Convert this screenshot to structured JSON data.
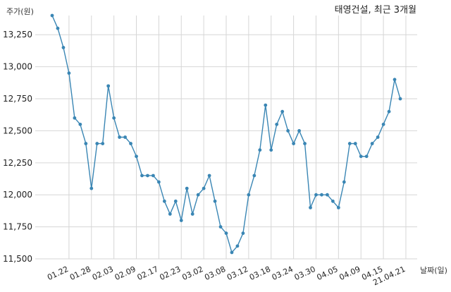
{
  "chart_data": {
    "type": "line",
    "title": "태영건설, 최근 3개월",
    "xlabel": "날짜(일)",
    "ylabel": "주가(원)",
    "ylim": [
      11500,
      13400
    ],
    "yticks": [
      11500,
      11750,
      12000,
      12250,
      12500,
      12750,
      13000,
      13250
    ],
    "ytick_labels": [
      "11,500",
      "11,750",
      "12,000",
      "12,250",
      "12,500",
      "12,750",
      "13,000",
      "13,250"
    ],
    "xtick_labels": [
      "01.22",
      "01.28",
      "02.03",
      "02.09",
      "02.17",
      "02.23",
      "03.02",
      "03.08",
      "03.12",
      "03.18",
      "03.24",
      "03.30",
      "04.05",
      "04.09",
      "04.15",
      "21.04.21"
    ],
    "xtick_positions": [
      3,
      7,
      11,
      15,
      19,
      23,
      27,
      31,
      35,
      39,
      43,
      47,
      51,
      55,
      59,
      63
    ],
    "grid": true,
    "line_color": "#3a86b4",
    "series": [
      {
        "name": "",
        "values": [
          13400,
          13300,
          13150,
          12950,
          12600,
          12550,
          12400,
          12050,
          12400,
          12400,
          12850,
          12600,
          12450,
          12450,
          12400,
          12300,
          12150,
          12150,
          12150,
          12100,
          11950,
          11850,
          11950,
          11800,
          12050,
          11850,
          12000,
          12050,
          12150,
          11950,
          11750,
          11700,
          11550,
          11600,
          11700,
          12000,
          12150,
          12350,
          12700,
          12350,
          12550,
          12650,
          12500,
          12400,
          12500,
          12400,
          11900,
          12000,
          12000,
          12000,
          11950,
          11900,
          12100,
          12400,
          12400,
          12300,
          12300,
          12400,
          12450,
          12550,
          12650,
          12900,
          12750
        ]
      }
    ]
  }
}
